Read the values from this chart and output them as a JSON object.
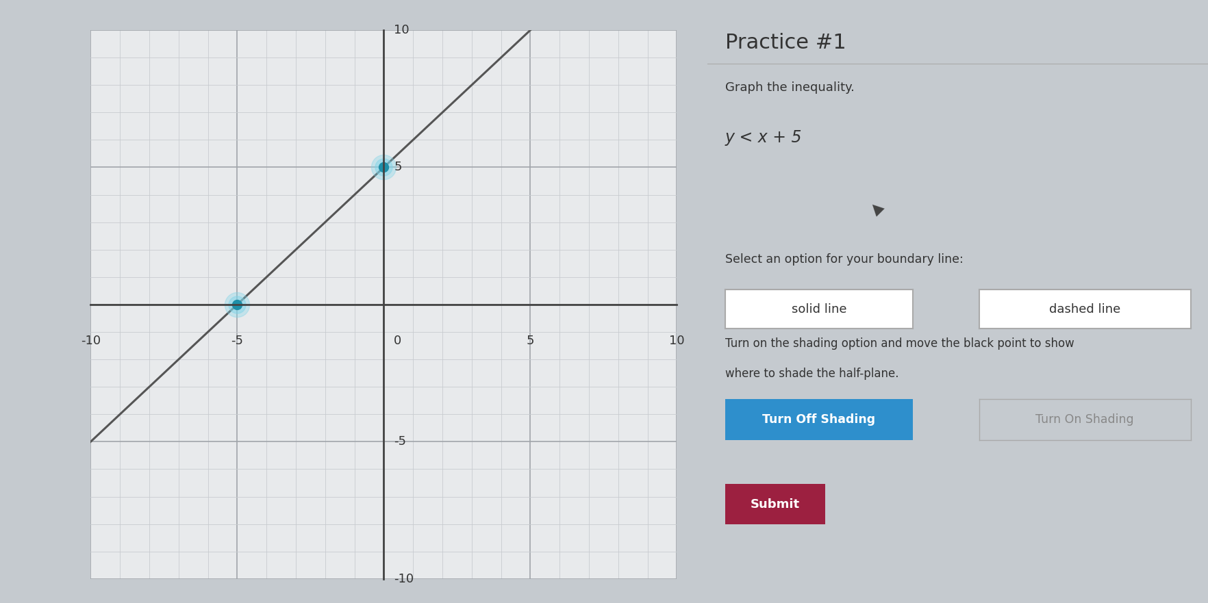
{
  "title": "Practice #1",
  "inequality": "y < x + 5",
  "graph_bg": "#e8eaec",
  "outer_bg": "#c5cacf",
  "grid_minor_color": "#c8ccd0",
  "grid_major_color": "#a0a5aa",
  "axis_color": "#444444",
  "line_color": "#555555",
  "line_width": 2.2,
  "xlim": [
    -10,
    10
  ],
  "ylim": [
    -10,
    10
  ],
  "xticks": [
    -10,
    -5,
    0,
    5,
    10
  ],
  "yticks": [
    -10,
    -5,
    0,
    5,
    10
  ],
  "dot1_x": -5,
  "dot1_y": 0,
  "dot2_x": 0,
  "dot2_y": 5,
  "dot_color": "#1e8fa8",
  "dot_halo": "#7fd4e8",
  "slope": 1,
  "intercept": 5,
  "graph_title": "Practice #1",
  "graph_title_fontsize": 22,
  "instruction_text": "Graph the inequality.",
  "formula_text": "y < x + 5",
  "boundary_label": "Select an option for your boundary line:",
  "btn_solid_text": "solid line",
  "btn_dashed_text": "dashed line",
  "shading_text1": "Turn on the shading option and move the black point to show",
  "shading_text2": "where to shade the half-plane.",
  "btn_off_text": "Turn Off Shading",
  "btn_on_text": "Turn On Shading",
  "submit_text": "Submit",
  "btn_off_color": "#2e8fcc",
  "submit_color": "#9c2040",
  "text_color": "#333333"
}
